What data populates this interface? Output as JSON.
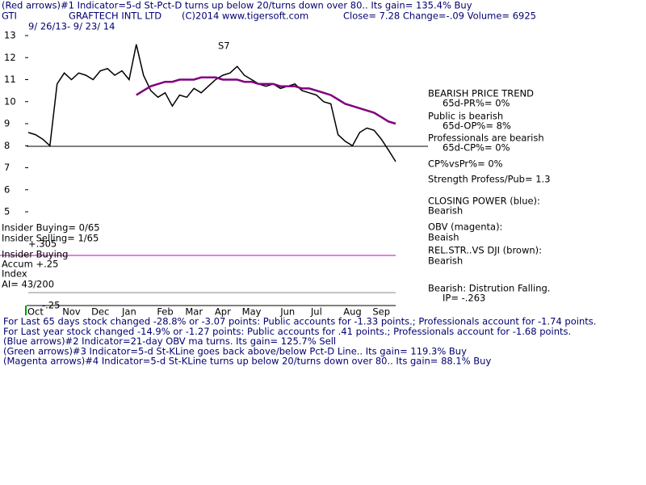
{
  "chart_data": {
    "type": "line",
    "header": [
      "(Red arrows)#1 Indicator=5-d St-Pct-D turns up below 20/turns down over 80.. Its gain= 135.4% Buy",
      "GTI",
      "GRAFTECH INTL LTD",
      "(C)2014 www.tigersoft.com",
      "Close=   7.28  Change=-.09 Volume=  6925",
      "9/ 26/13- 9/ 23/ 14",
      "S7"
    ],
    "right_panel": [
      "BEARISH PRICE TREND",
      "65d-PR%= 0%",
      "Public is bearish",
      "65d-OP%= 8%",
      "Professionals are bearish",
      "65d-CP%= 0%",
      "CP%vsPr%=  0%",
      "Strength Profess/Pub= 1.3",
      "CLOSING POWER (blue):",
      "Bearish",
      "OBV (magenta):",
      "Beaish",
      "REL.STR..VS DJI (brown):",
      "Bearish",
      "Bearish: Distrution Falling.",
      "IP= -.263"
    ],
    "left_labels": [
      "Insider Buying= 0/65",
      "Insider Selling= 1/65",
      "+.305",
      "Insider Buying",
      "Accum +.25",
      "Index",
      "AI= 43/200",
      "-.25"
    ],
    "footer": [
      "For Last 65 days stock changed -28.8% or -3.07 points:  Public accounts for -1.33 points.;  Professionals account for -1.74 points.",
      "For Last year stock changed -14.9% or -1.27 points:  Public accounts for  .41 points.;  Professionals account for -1.68 points.",
      "(Blue arrows)#2 Indicator=21-day OBV ma turns. Its gain= 125.7% Sell",
      "(Green arrows)#3 Indicator=5-d St-KLine goes back above/below Pct-D Line.. Its gain= 119.3% Buy",
      "(Magenta arrows)#4 Indicator=5-d St-KLine turns up below 20/turns down over 80.. Its gain= 88.1% Buy"
    ],
    "categories": [
      null,
      "Oct",
      null,
      null,
      null,
      null,
      "Nov",
      null,
      null,
      null,
      "Dec",
      null,
      null,
      null,
      "Jan",
      null,
      null,
      null,
      null,
      "Feb",
      null,
      null,
      null,
      "Mar",
      null,
      null,
      null,
      "Apr",
      null,
      null,
      null,
      "May",
      null,
      null,
      null,
      null,
      "Jun",
      null,
      null,
      null,
      "Jul",
      null,
      null,
      null,
      null,
      "Aug",
      null,
      null,
      null,
      "Sep",
      null,
      null
    ],
    "series": [
      {
        "color": "#000000",
        "values": [
          8.6,
          8.5,
          8.3,
          8.0,
          10.8,
          11.3,
          11.0,
          11.3,
          11.2,
          11.0,
          11.4,
          11.5,
          11.2,
          11.4,
          11.0,
          12.6,
          11.2,
          10.5,
          10.2,
          10.4,
          9.8,
          10.3,
          10.2,
          10.6,
          10.4,
          10.7,
          11.0,
          11.2,
          11.3,
          11.6,
          11.2,
          11.0,
          10.8,
          10.7,
          10.8,
          10.6,
          10.7,
          10.8,
          10.5,
          10.4,
          10.3,
          10.0,
          9.9,
          8.5,
          8.2,
          8.0,
          8.6,
          8.8,
          8.7,
          8.3,
          7.8,
          7.28
        ]
      },
      {
        "color": "#800080",
        "values": [
          null,
          null,
          null,
          null,
          null,
          null,
          null,
          null,
          null,
          null,
          null,
          null,
          null,
          null,
          null,
          10.3,
          10.5,
          10.7,
          10.8,
          10.9,
          10.9,
          11.0,
          11.0,
          11.0,
          11.1,
          11.1,
          11.1,
          11.0,
          11.0,
          11.0,
          10.9,
          10.9,
          10.8,
          10.8,
          10.8,
          10.7,
          10.7,
          10.7,
          10.6,
          10.6,
          10.5,
          10.4,
          10.3,
          10.1,
          9.9,
          9.8,
          9.7,
          9.6,
          9.5,
          9.3,
          9.1,
          9.0
        ]
      }
    ],
    "ylim": [
      5,
      13
    ],
    "yticks": [
      5,
      6,
      7,
      8,
      9,
      10,
      11,
      12,
      13
    ]
  }
}
